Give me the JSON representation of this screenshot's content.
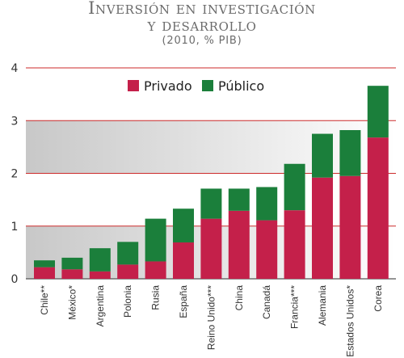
{
  "title": {
    "line1": "Inversión en investigación",
    "line2": "y desarrollo",
    "subtitle": "(2010, % PIB)"
  },
  "colors": {
    "privado": "#c4204a",
    "publico": "#1b7f3b",
    "gridline": "#cc2a2a",
    "axis": "#555555",
    "band_dark": "#c8c8c8",
    "band_light": "#ffffff"
  },
  "chart_data": {
    "type": "bar",
    "stacked": true,
    "categories": [
      "Chile**",
      "México*",
      "Argentina",
      "Polonia",
      "Rusia",
      "España",
      "Reino Unido***",
      "China",
      "Canadá",
      "Francia***",
      "Alemania",
      "Estados Unidos*",
      "Corea"
    ],
    "series": [
      {
        "name": "Privado",
        "values": [
          0.22,
          0.18,
          0.14,
          0.27,
          0.33,
          0.69,
          1.14,
          1.29,
          1.11,
          1.3,
          1.92,
          1.95,
          2.68
        ]
      },
      {
        "name": "Público",
        "values": [
          0.13,
          0.22,
          0.44,
          0.43,
          0.81,
          0.64,
          0.57,
          0.42,
          0.63,
          0.88,
          0.83,
          0.87,
          0.98
        ]
      }
    ],
    "ylim": [
      0,
      4
    ],
    "yticks": [
      0,
      1,
      2,
      3,
      4
    ],
    "grid": true,
    "legend": "top-right"
  }
}
